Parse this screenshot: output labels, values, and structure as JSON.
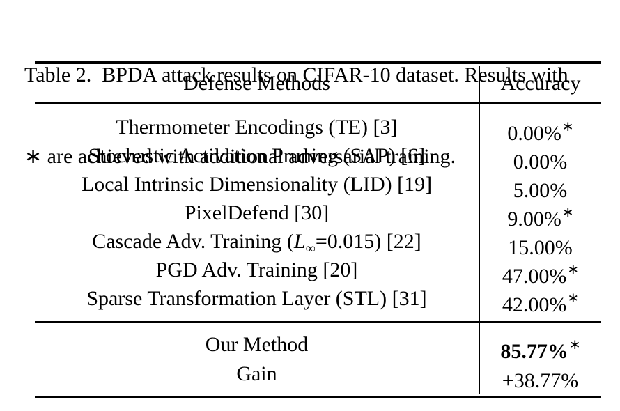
{
  "caption": {
    "line1": "Table 2.  BPDA attack results on CIFAR-10 dataset. Results with",
    "line2": "∗ are achieved with additional adversarial training."
  },
  "table": {
    "headers": {
      "method": "Defense Methods",
      "accuracy": "Accuracy"
    },
    "rows": [
      {
        "method": "Thermometer Encodings (TE) [3]",
        "accuracy": "0.00%",
        "star": "∗"
      },
      {
        "method": "Stochastic Activation Pruning (SAP) [6]",
        "accuracy": "0.00%",
        "star": ""
      },
      {
        "method": "Local Intrinsic Dimensionality (LID) [19]",
        "accuracy": "5.00%",
        "star": ""
      },
      {
        "method": "PixelDefend [30]",
        "accuracy": "9.00%",
        "star": "∗"
      },
      {
        "method_prefix": "Cascade Adv. Training (",
        "method_var": "L",
        "method_sub": "∞",
        "method_suffix": "=0.015) [22]",
        "accuracy": "15.00%",
        "star": ""
      },
      {
        "method": "PGD Adv. Training [20]",
        "accuracy": "47.00%",
        "star": "∗"
      },
      {
        "method": "Sparse Transformation Layer (STL) [31]",
        "accuracy": "42.00%",
        "star": "∗"
      }
    ],
    "summary_rows": [
      {
        "method": "Our Method",
        "accuracy": "85.77%",
        "star": "∗"
      },
      {
        "method": "Gain",
        "accuracy": "+38.77%",
        "star": ""
      }
    ]
  },
  "colors": {
    "text": "#000000",
    "background": "#ffffff",
    "rule": "#000000"
  }
}
